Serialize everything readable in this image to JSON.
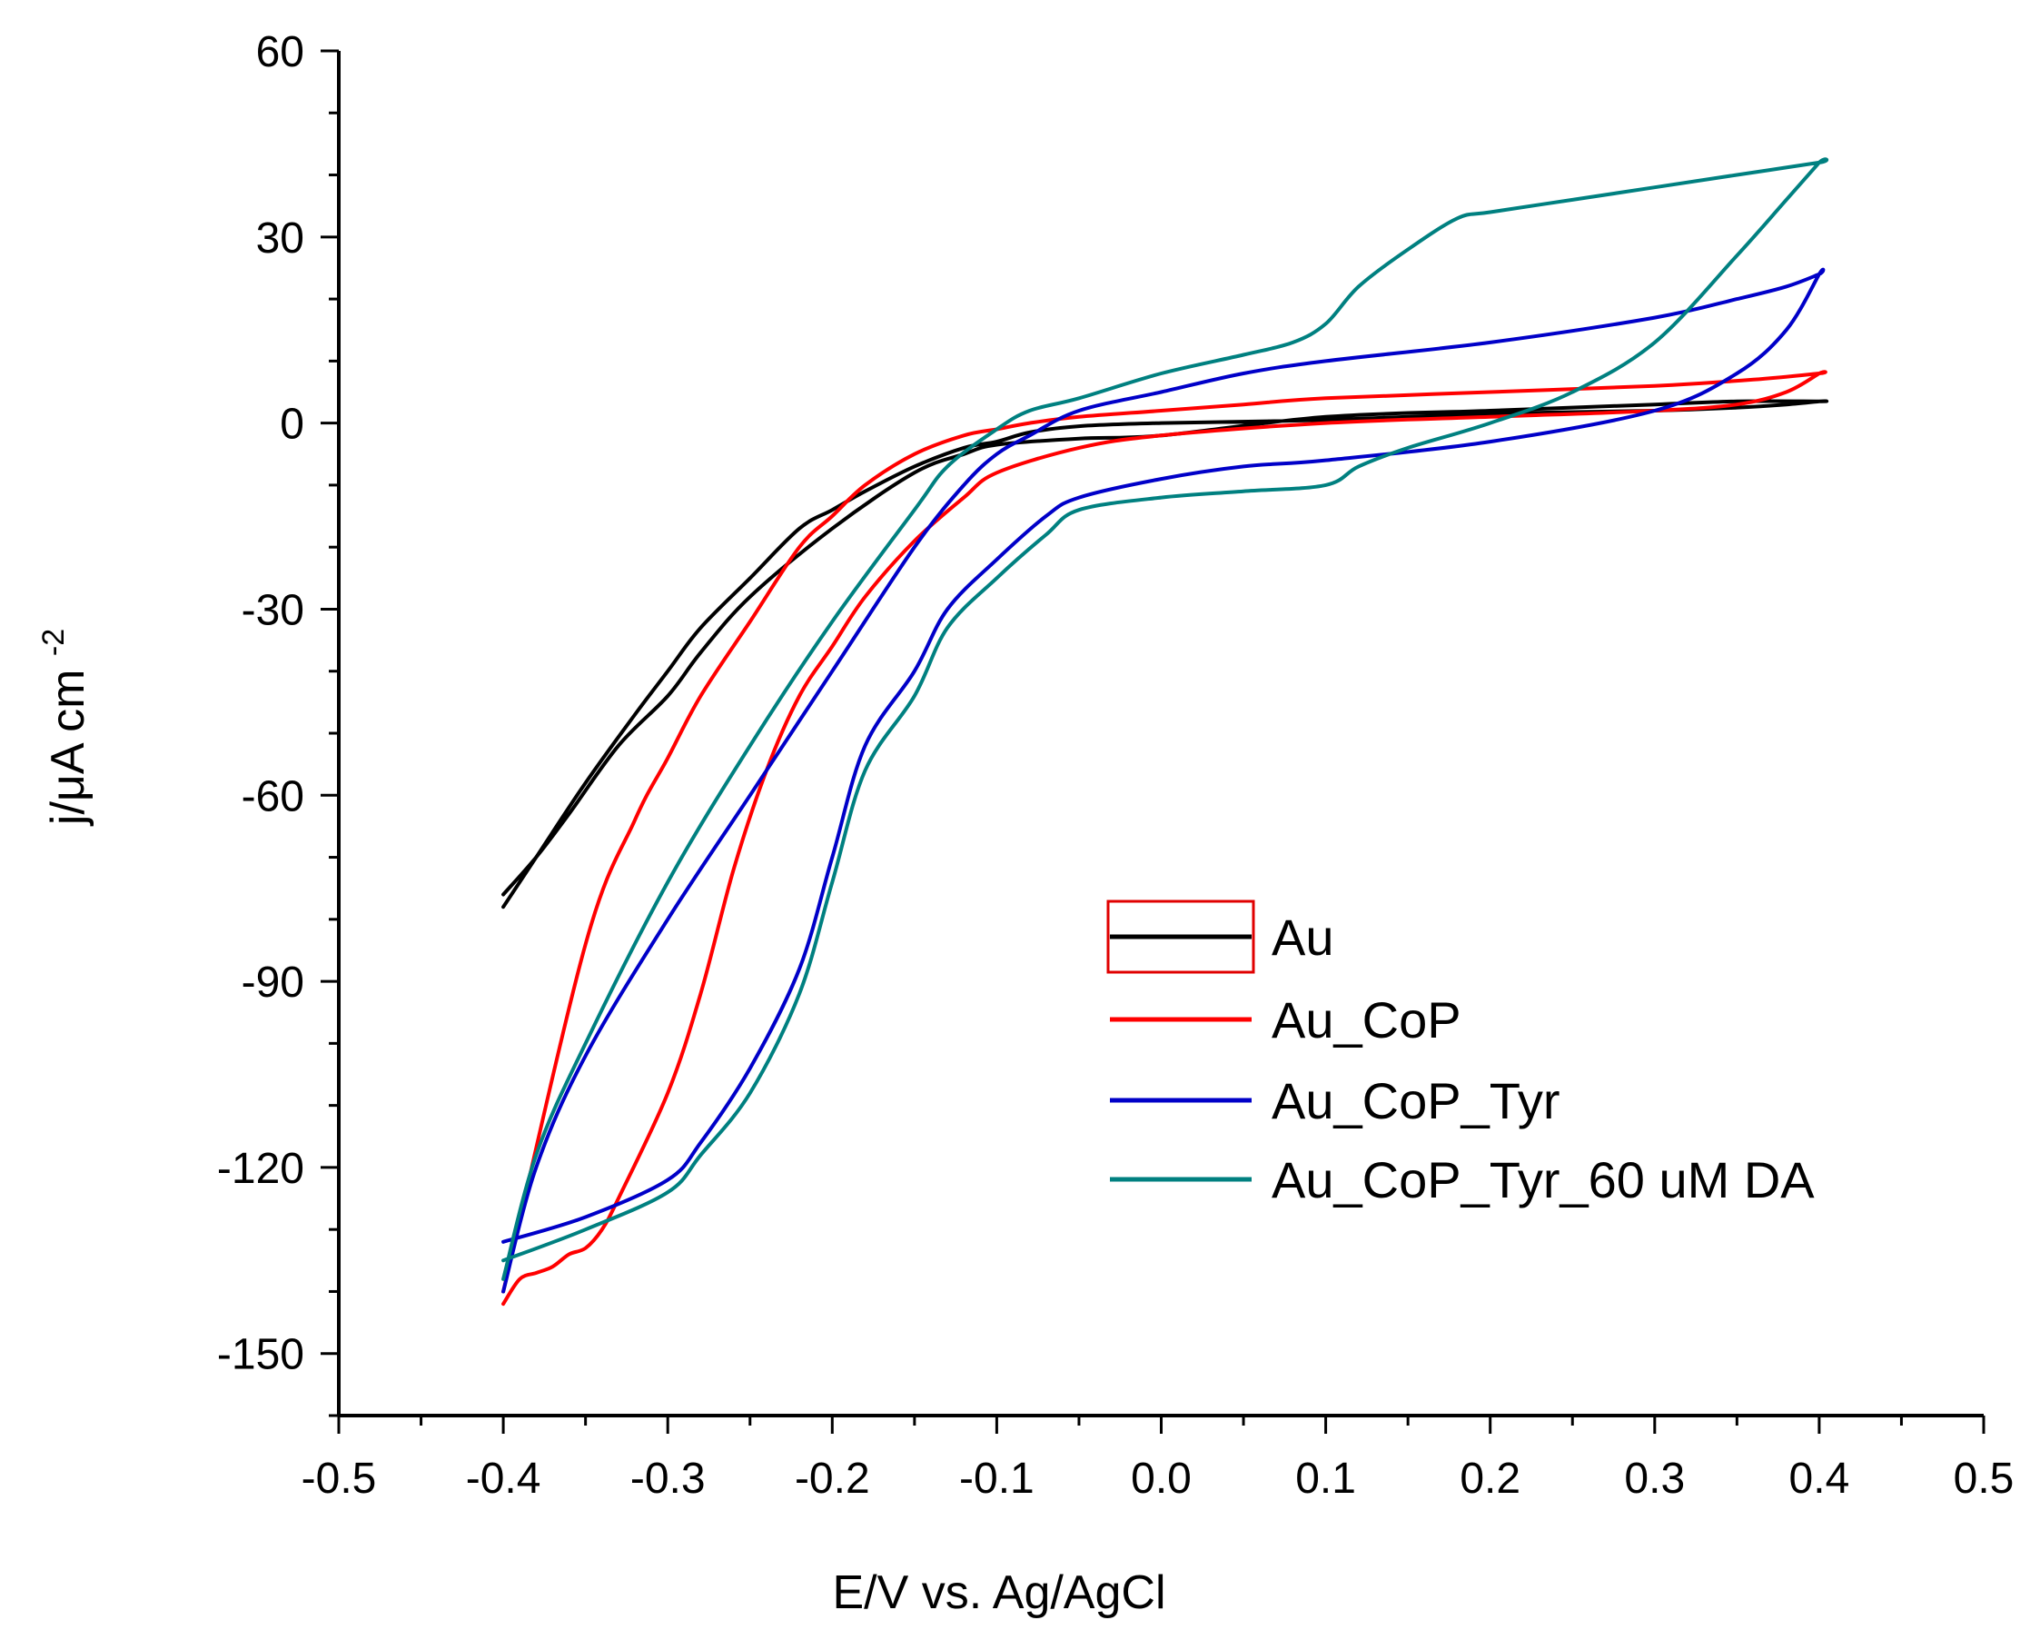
{
  "chart_data": {
    "type": "line",
    "title": "",
    "xlabel": "E/V vs. Ag/AgCl",
    "ylabel_main": "j/μA cm",
    "ylabel_sup": "-2",
    "xlim": [
      -0.5,
      0.5
    ],
    "ylim": [
      -160,
      60
    ],
    "xticks": [
      -0.5,
      -0.4,
      -0.3,
      -0.2,
      -0.1,
      0.0,
      0.1,
      0.2,
      0.3,
      0.4,
      0.5
    ],
    "xtick_labels": [
      "-0.5",
      "-0.4",
      "-0.3",
      "-0.2",
      "-0.1",
      "0.0",
      "0.1",
      "0.2",
      "0.3",
      "0.4",
      "0.5"
    ],
    "yticks": [
      60,
      30,
      0,
      -30,
      -60,
      -90,
      -120,
      -150
    ],
    "ytick_labels": [
      "60",
      "30",
      "0",
      "-30",
      "-60",
      "-90",
      "-120",
      "-150"
    ],
    "grid": false,
    "legend_position": "lower-right",
    "series": [
      {
        "name": "Au",
        "color": "#000000",
        "x": [
          -0.4,
          -0.38,
          -0.35,
          -0.32,
          -0.3,
          -0.28,
          -0.25,
          -0.22,
          -0.2,
          -0.18,
          -0.15,
          -0.12,
          -0.1,
          -0.08,
          -0.05,
          0.0,
          0.1,
          0.2,
          0.3,
          0.35,
          0.38,
          0.4,
          0.4,
          0.35,
          0.3,
          0.2,
          0.1,
          0.0,
          -0.05,
          -0.1,
          -0.12,
          -0.15,
          -0.2,
          -0.25,
          -0.28,
          -0.3,
          -0.33,
          -0.36,
          -0.38,
          -0.4
        ],
        "y": [
          -78,
          -70,
          -58,
          -47,
          -40,
          -33,
          -25,
          -17,
          -14,
          -11,
          -7,
          -4,
          -3,
          -1.5,
          -0.5,
          0,
          0.5,
          1.5,
          2,
          2.5,
          3,
          3.5,
          3.5,
          3.5,
          3,
          2,
          1,
          -2,
          -2.5,
          -3.5,
          -5,
          -8,
          -17,
          -28,
          -37,
          -44,
          -52,
          -63,
          -70,
          -76
        ]
      },
      {
        "name": "Au_CoP",
        "color": "#ff0000",
        "x": [
          -0.4,
          -0.39,
          -0.38,
          -0.37,
          -0.36,
          -0.35,
          -0.34,
          -0.33,
          -0.3,
          -0.28,
          -0.26,
          -0.24,
          -0.22,
          -0.2,
          -0.18,
          -0.15,
          -0.12,
          -0.1,
          -0.05,
          0.0,
          0.1,
          0.2,
          0.3,
          0.35,
          0.38,
          0.4,
          0.4,
          0.36,
          0.3,
          0.2,
          0.1,
          0.05,
          0.0,
          -0.05,
          -0.08,
          -0.1,
          -0.12,
          -0.15,
          -0.18,
          -0.2,
          -0.22,
          -0.25,
          -0.28,
          -0.3,
          -0.32,
          -0.35,
          -0.4
        ],
        "y": [
          -142,
          -138,
          -137,
          -136,
          -134,
          -133,
          -130,
          -125,
          -108,
          -92,
          -72,
          -56,
          -44,
          -36,
          -28,
          -19,
          -12,
          -8,
          -4,
          -2,
          0,
          1,
          2,
          3,
          5,
          8,
          8,
          7,
          6,
          5,
          4,
          3,
          2,
          1,
          0,
          -1,
          -2,
          -5,
          -10,
          -15,
          -20,
          -32,
          -44,
          -54,
          -64,
          -84,
          -140
        ]
      },
      {
        "name": "Au_CoP_Tyr",
        "color": "#0000c8",
        "x": [
          -0.4,
          -0.35,
          -0.3,
          -0.28,
          -0.25,
          -0.22,
          -0.2,
          -0.18,
          -0.15,
          -0.13,
          -0.1,
          -0.07,
          -0.05,
          0.0,
          0.05,
          0.1,
          0.2,
          0.3,
          0.35,
          0.38,
          0.4,
          0.4,
          0.38,
          0.35,
          0.3,
          0.2,
          0.1,
          0.05,
          0.0,
          -0.05,
          -0.08,
          -0.1,
          -0.12,
          -0.15,
          -0.2,
          -0.25,
          -0.3,
          -0.35,
          -0.38,
          -0.4
        ],
        "y": [
          -132,
          -128,
          -122,
          -116,
          -104,
          -88,
          -70,
          -52,
          -40,
          -30,
          -22,
          -15,
          -12,
          -9,
          -7,
          -6,
          -3,
          2,
          8,
          15,
          24,
          24,
          22,
          20,
          17,
          13,
          10,
          8,
          5,
          2,
          -2,
          -5,
          -10,
          -20,
          -40,
          -60,
          -80,
          -102,
          -120,
          -140
        ]
      },
      {
        "name": "Au_CoP_Tyr_60 uM DA",
        "color": "#008080",
        "x": [
          -0.4,
          -0.35,
          -0.3,
          -0.28,
          -0.25,
          -0.22,
          -0.2,
          -0.18,
          -0.15,
          -0.13,
          -0.1,
          -0.07,
          -0.05,
          0.0,
          0.05,
          0.1,
          0.12,
          0.15,
          0.2,
          0.25,
          0.3,
          0.35,
          0.38,
          0.4,
          0.4,
          0.35,
          0.3,
          0.25,
          0.2,
          0.18,
          0.15,
          0.12,
          0.1,
          0.08,
          0.05,
          0.0,
          -0.05,
          -0.08,
          -0.1,
          -0.13,
          -0.15,
          -0.2,
          -0.25,
          -0.3,
          -0.35,
          -0.38,
          -0.4
        ],
        "y": [
          -135,
          -130,
          -124,
          -118,
          -108,
          -92,
          -74,
          -56,
          -44,
          -33,
          -25,
          -18,
          -14,
          -12,
          -11,
          -10,
          -7,
          -4,
          0,
          5,
          13,
          27,
          36,
          42,
          42,
          40,
          38,
          36,
          34,
          33,
          28,
          22,
          16,
          13,
          11,
          8,
          4,
          2,
          -1,
          -7,
          -14,
          -32,
          -52,
          -74,
          -100,
          -118,
          -138
        ]
      }
    ]
  }
}
